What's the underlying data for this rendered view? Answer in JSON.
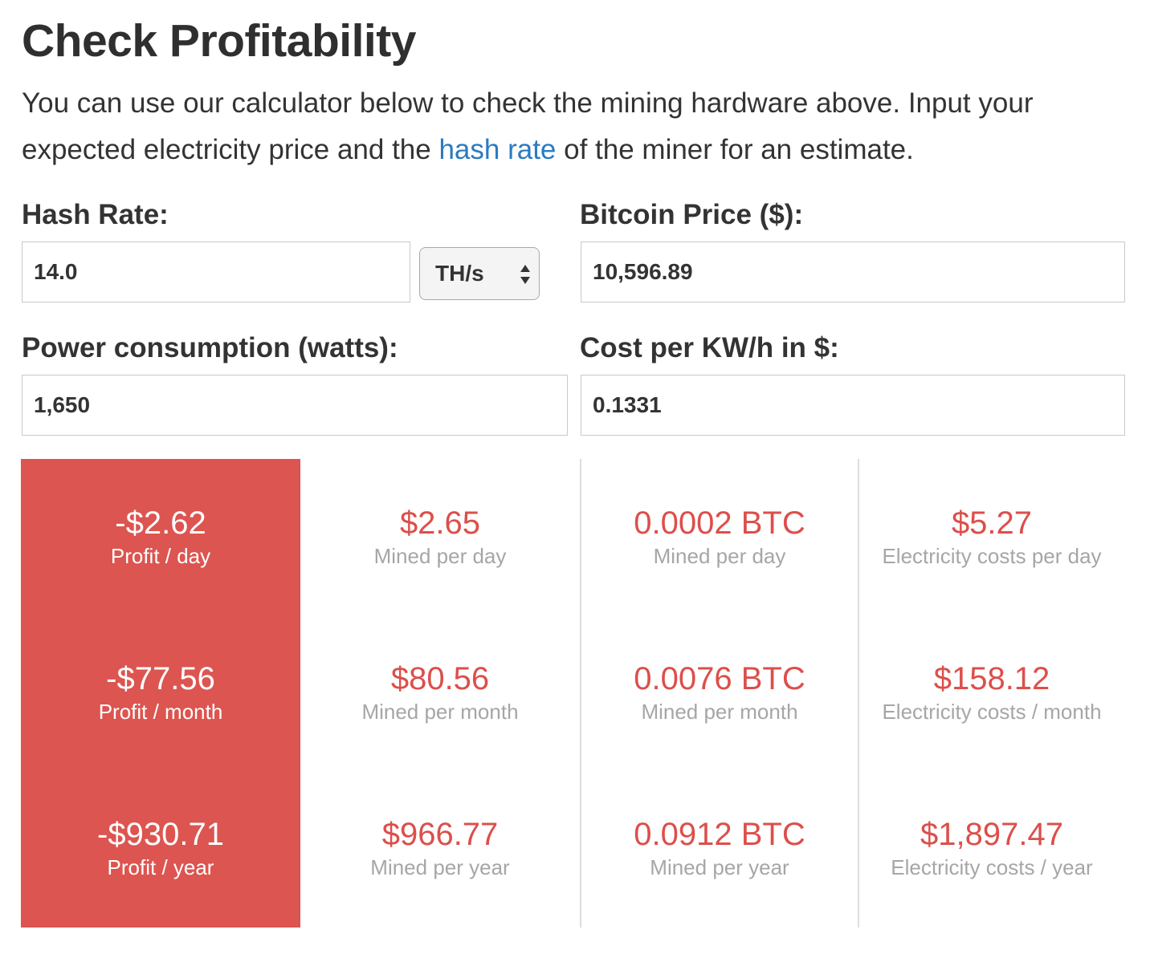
{
  "heading": "Check Profitability",
  "intro": {
    "text_before": "You can use our calculator below to check the mining hardware above. Input your expected electricity price and the ",
    "link_text": "hash rate",
    "text_after": " of the miner for an estimate."
  },
  "form": {
    "hash_rate": {
      "label": "Hash Rate:",
      "value": "14.0",
      "unit": "TH/s"
    },
    "bitcoin_price": {
      "label": "Bitcoin Price ($):",
      "value": "10,596.89"
    },
    "power": {
      "label": "Power consumption (watts):",
      "value": "1,650"
    },
    "cost": {
      "label": "Cost per KW/h in $:",
      "value": "0.1331"
    }
  },
  "results": {
    "profit": [
      {
        "value": "-$2.62",
        "caption": "Profit / day"
      },
      {
        "value": "-$77.56",
        "caption": "Profit / month"
      },
      {
        "value": "-$930.71",
        "caption": "Profit / year"
      }
    ],
    "mined_usd": [
      {
        "value": "$2.65",
        "caption": "Mined per day"
      },
      {
        "value": "$80.56",
        "caption": "Mined per month"
      },
      {
        "value": "$966.77",
        "caption": "Mined per year"
      }
    ],
    "mined_btc": [
      {
        "value": "0.0002 BTC",
        "caption": "Mined per day"
      },
      {
        "value": "0.0076 BTC",
        "caption": "Mined per month"
      },
      {
        "value": "0.0912 BTC",
        "caption": "Mined per year"
      }
    ],
    "electricity": [
      {
        "value": "$5.27",
        "caption": "Electricity costs per day"
      },
      {
        "value": "$158.12",
        "caption": "Electricity costs / month"
      },
      {
        "value": "$1,897.47",
        "caption": "Electricity costs / year"
      }
    ]
  },
  "colors": {
    "accent_red": "#dc5550",
    "link_blue": "#2a7bc1",
    "caption_gray": "#a6a6a6"
  }
}
